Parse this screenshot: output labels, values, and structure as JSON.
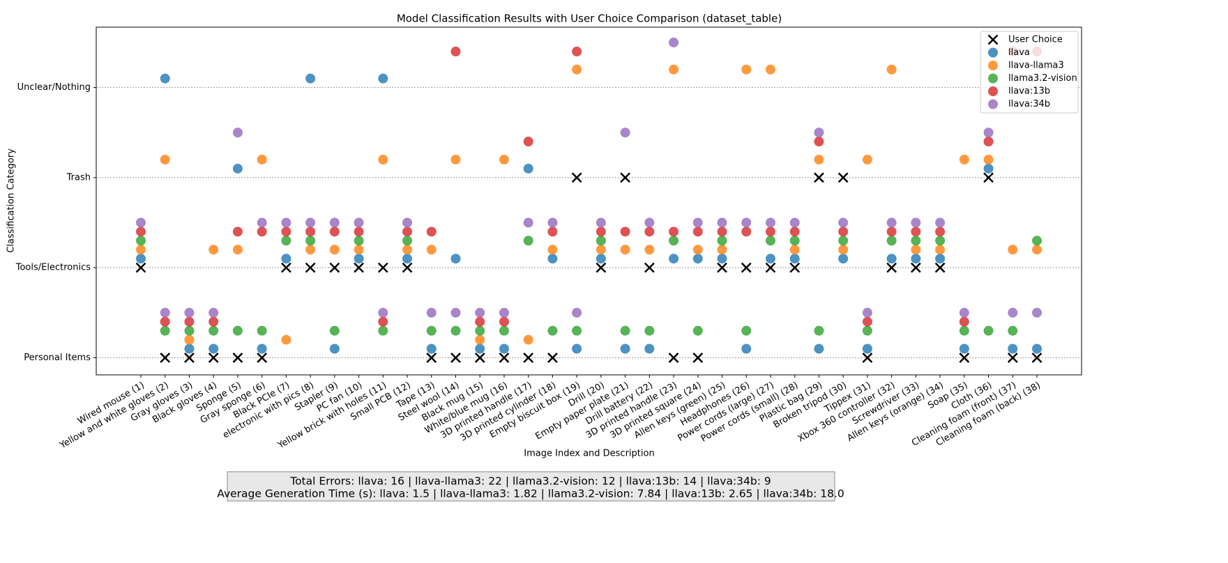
{
  "chart_data": {
    "type": "scatter",
    "title": "Model Classification Results with User Choice Comparison (dataset_table)",
    "x_label": "Image Index and Description",
    "y_label": "Classification Category",
    "categories": [
      "Wired mouse (1)",
      "Yellow and white gloves (2)",
      "Gray gloves (3)",
      "Black gloves (4)",
      "Sponge (5)",
      "Gray sponge (6)",
      "Black PCIe (7)",
      "electronic with pics (8)",
      "Stapler (9)",
      "PC fan (10)",
      "Yellow brick with holes (11)",
      "Small PCB (12)",
      "Tape (13)",
      "Steel wool (14)",
      "Black mug (15)",
      "White/blue mug (16)",
      "3D printed handle (17)",
      "3D printed cylinder (18)",
      "Empty biscuit box (19)",
      "Drill (20)",
      "Empty paper plate (21)",
      "Drill battery (22)",
      "3D printed handle (23)",
      "3D printed square (24)",
      "Allen keys (green) (25)",
      "Headphones (26)",
      "Power cords (large) (27)",
      "Power cords (small) (28)",
      "Plastic bag (29)",
      "Broken tripod (30)",
      "Tippex (31)",
      "Xbox 360 controller (32)",
      "Screwdriver (33)",
      "Allen keys (orange) (34)",
      "Soap (35)",
      "Cloth (36)",
      "Cleaning foam (front) (37)",
      "Cleaning foam (back) (38)"
    ],
    "ylim": [
      -0.19,
      3.67
    ],
    "yticks": [
      {
        "value": 0,
        "label": "Personal Items"
      },
      {
        "value": 1,
        "label": "Tools/Electronics"
      },
      {
        "value": 2,
        "label": "Trash"
      },
      {
        "value": 3,
        "label": "Unclear/Nothing"
      }
    ],
    "grid": true,
    "legend_loc": "upper right",
    "series": [
      {
        "name": "User Choice",
        "color": "#000000",
        "marker": "x",
        "values": [
          1,
          0,
          0,
          0,
          0,
          0,
          1,
          1,
          1,
          1,
          1,
          1,
          0,
          0,
          0,
          0,
          0,
          0,
          2,
          1,
          2,
          1,
          0,
          0,
          1,
          1,
          1,
          1,
          2,
          2,
          0,
          1,
          1,
          1,
          0,
          2,
          0,
          0
        ]
      },
      {
        "name": "llava",
        "color": "#1f77b4",
        "marker": "o",
        "values": [
          1,
          3,
          0,
          0,
          2,
          0,
          1,
          3,
          0,
          1,
          3,
          1,
          0,
          1,
          0,
          0,
          2,
          1,
          0,
          1,
          0,
          0,
          1,
          1,
          1,
          0,
          1,
          1,
          0,
          1,
          0,
          1,
          1,
          1,
          0,
          2,
          0,
          0
        ]
      },
      {
        "name": "llava-llama3",
        "color": "#ff7f0e",
        "marker": "o",
        "values": [
          1,
          2,
          0,
          1,
          1,
          2,
          0,
          1,
          1,
          1,
          2,
          1,
          1,
          2,
          0,
          2,
          0,
          1,
          3,
          1,
          1,
          1,
          3,
          1,
          1,
          3,
          3,
          1,
          2,
          1,
          2,
          3,
          1,
          1,
          2,
          2,
          1,
          1
        ]
      },
      {
        "name": "llama3.2-vision",
        "color": "#2ca02c",
        "marker": "o",
        "values": [
          1,
          0,
          0,
          0,
          0,
          0,
          1,
          1,
          0,
          1,
          0,
          1,
          0,
          0,
          0,
          0,
          1,
          0,
          0,
          1,
          0,
          0,
          1,
          0,
          1,
          0,
          1,
          1,
          0,
          1,
          0,
          1,
          1,
          1,
          0,
          0,
          0,
          1
        ]
      },
      {
        "name": "llava:13b",
        "color": "#d62728",
        "marker": "o",
        "values": [
          1,
          0,
          0,
          0,
          1,
          1,
          1,
          1,
          1,
          1,
          0,
          1,
          1,
          3,
          0,
          0,
          2,
          1,
          3,
          1,
          1,
          1,
          1,
          1,
          1,
          1,
          1,
          1,
          2,
          1,
          0,
          1,
          1,
          1,
          0,
          2,
          3,
          3
        ]
      },
      {
        "name": "llava:34b",
        "color": "#9467bd",
        "marker": "o",
        "values": [
          1,
          0,
          0,
          0,
          2,
          1,
          1,
          1,
          1,
          1,
          0,
          1,
          0,
          0,
          0,
          0,
          1,
          1,
          0,
          1,
          2,
          1,
          3,
          1,
          1,
          1,
          1,
          1,
          2,
          1,
          0,
          1,
          1,
          1,
          0,
          2,
          0,
          0
        ]
      }
    ],
    "summary": [
      "Total Errors: llava: 16 | llava-llama3: 22 | llama3.2-vision: 12 | llava:13b: 14 | llava:34b: 9",
      "Average Generation Time (s): llava: 1.5 | llava-llama3: 1.82 | llama3.2-vision: 7.84 | llava:13b: 2.65 | llava:34b: 18.0"
    ]
  }
}
